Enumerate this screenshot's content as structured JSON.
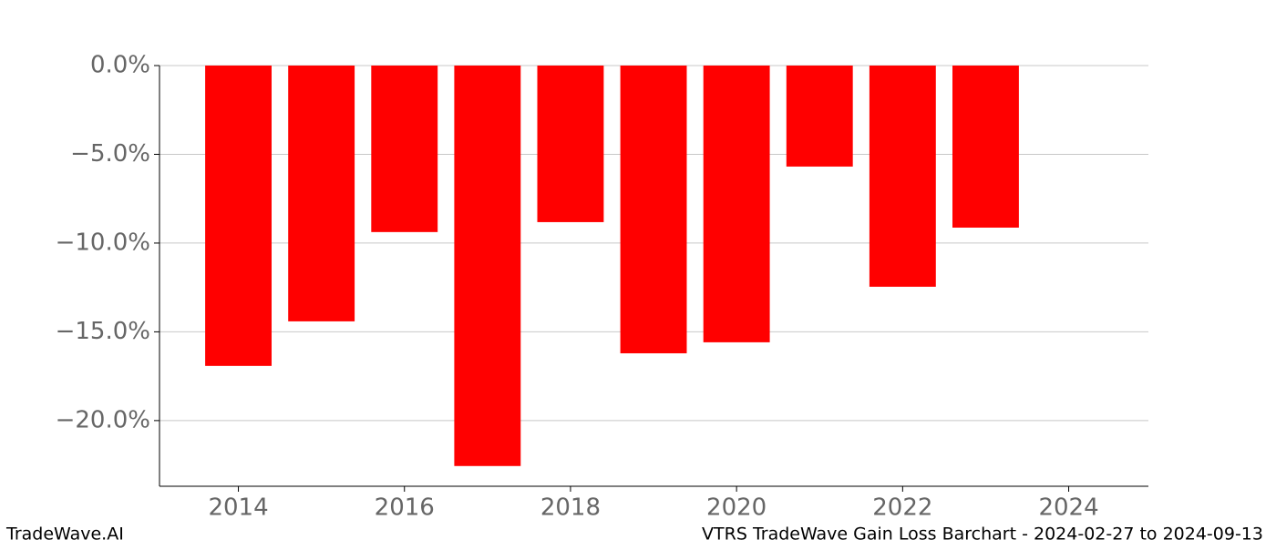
{
  "chart_data": {
    "type": "bar",
    "title": "VTRS TradeWave Gain Loss Barchart - 2024-02-27 to 2024-09-13",
    "source": "TradeWave.AI",
    "x": [
      2014,
      2015,
      2016,
      2017,
      2018,
      2019,
      2020,
      2021,
      2022,
      2023
    ],
    "values": [
      -16.92,
      -14.41,
      -9.38,
      -22.56,
      -8.82,
      -16.21,
      -15.59,
      -5.69,
      -12.46,
      -9.13
    ],
    "color": "#ff0000",
    "xlim": [
      2013.05,
      2024.96
    ],
    "xticks": [
      2014,
      2016,
      2018,
      2020,
      2022,
      2024
    ],
    "ylim": [
      -23.7,
      0
    ],
    "yticks": [
      {
        "value": 0,
        "label": "0.0%"
      },
      {
        "value": -5,
        "label": "−5.0%"
      },
      {
        "value": -10,
        "label": "−10.0%"
      },
      {
        "value": -15,
        "label": "−15.0%"
      },
      {
        "value": -20,
        "label": "−20.0%"
      }
    ],
    "grid": true
  }
}
